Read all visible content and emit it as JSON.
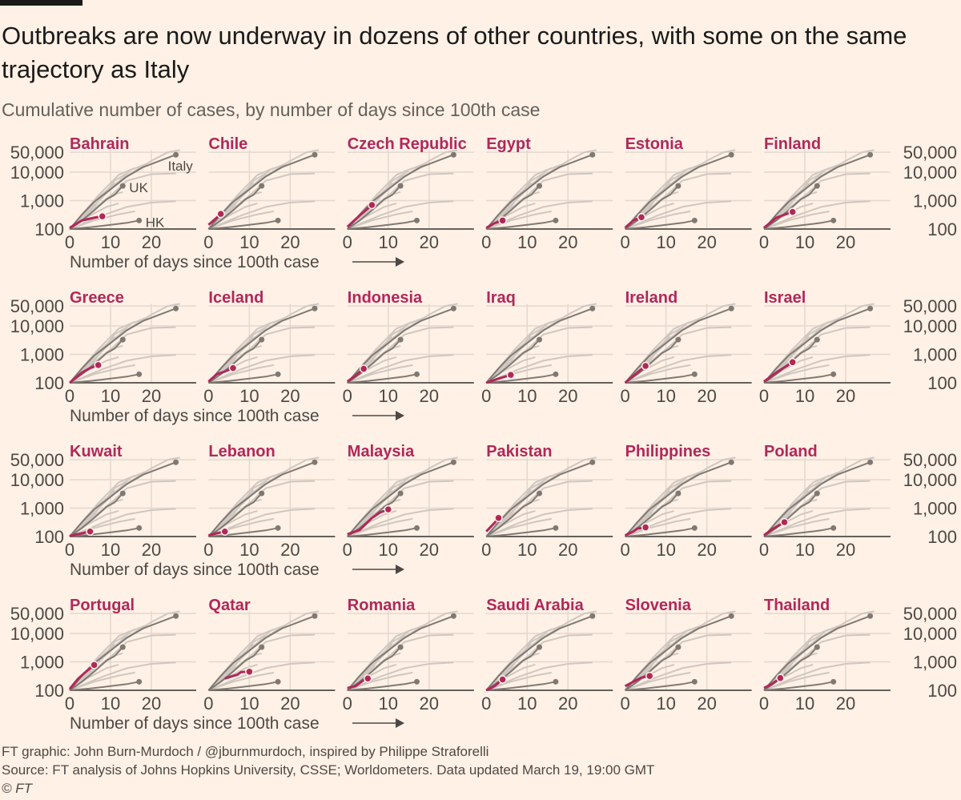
{
  "header": {
    "title": "Outbreaks are now underway in dozens of other countries, with some on the same trajectory as Italy",
    "subtitle": "Cumulative number of cases, by number of days since 100th case"
  },
  "footer": {
    "credit": "FT graphic: John Burn-Murdoch / @jburnmurdoch, inspired by Philippe Straforelli",
    "source": "Source: FT analysis of Johns Hopkins University, CSSE; Worldometers. Data updated March 19, 19:00 GMT",
    "copyright": "© FT"
  },
  "colors": {
    "background": "#fff1e5",
    "highlight": "#b0285a",
    "reference": "#807973",
    "others": "#cfc7c0",
    "grid": "#e3d8cf",
    "axis": "#66605c"
  },
  "chart_data": {
    "type": "line",
    "layout": "small-multiples",
    "xlabel": "Number of days since 100th case",
    "ylabel": "",
    "yscale": "log",
    "ylim": [
      100,
      60000
    ],
    "xlim": [
      0,
      30
    ],
    "x_ticks": [
      "0",
      "10",
      "20"
    ],
    "y_ticks": [
      {
        "value": 100,
        "label": "100"
      },
      {
        "value": 1000,
        "label": "1,000"
      },
      {
        "value": 10000,
        "label": "10,000"
      },
      {
        "value": 50000,
        "label": "50,000"
      }
    ],
    "reference_series": [
      {
        "name": "Italy",
        "label": "Italy",
        "points": [
          [
            0,
            100
          ],
          [
            3,
            320
          ],
          [
            6,
            900
          ],
          [
            10,
            2500
          ],
          [
            14,
            7000
          ],
          [
            18,
            15000
          ],
          [
            22,
            25000
          ],
          [
            26,
            41000
          ]
        ]
      },
      {
        "name": "UK",
        "label": "UK",
        "points": [
          [
            0,
            100
          ],
          [
            3,
            200
          ],
          [
            6,
            450
          ],
          [
            9,
            1100
          ],
          [
            11,
            1600
          ],
          [
            13,
            3300
          ]
        ]
      },
      {
        "name": "HK",
        "label": "HK",
        "points": [
          [
            0,
            100
          ],
          [
            5,
            115
          ],
          [
            10,
            140
          ],
          [
            14,
            165
          ],
          [
            17,
            200
          ]
        ]
      }
    ],
    "other_series": [
      [
        [
          0,
          100
        ],
        [
          5,
          700
        ],
        [
          10,
          3000
        ],
        [
          15,
          9000
        ],
        [
          20,
          25000
        ],
        [
          24,
          50000
        ],
        [
          27,
          60000
        ]
      ],
      [
        [
          0,
          100
        ],
        [
          5,
          500
        ],
        [
          10,
          2500
        ],
        [
          15,
          12000
        ],
        [
          19,
          20000
        ]
      ],
      [
        [
          0,
          100
        ],
        [
          7,
          1500
        ],
        [
          12,
          8000
        ],
        [
          16,
          14000
        ]
      ],
      [
        [
          0,
          100
        ],
        [
          6,
          600
        ],
        [
          11,
          5000
        ],
        [
          14,
          9000
        ]
      ],
      [
        [
          0,
          100
        ],
        [
          8,
          800
        ],
        [
          14,
          5000
        ],
        [
          20,
          8500
        ],
        [
          26,
          9000
        ]
      ],
      [
        [
          0,
          100
        ],
        [
          5,
          400
        ],
        [
          10,
          1500
        ],
        [
          13,
          2000
        ]
      ],
      [
        [
          0,
          100
        ],
        [
          8,
          300
        ],
        [
          14,
          600
        ],
        [
          20,
          850
        ],
        [
          26,
          950
        ]
      ],
      [
        [
          0,
          100
        ],
        [
          6,
          200
        ],
        [
          12,
          330
        ],
        [
          16,
          420
        ]
      ],
      [
        [
          0,
          100
        ],
        [
          4,
          250
        ],
        [
          9,
          600
        ],
        [
          12,
          800
        ]
      ],
      [
        [
          0,
          100
        ],
        [
          3,
          300
        ],
        [
          7,
          1200
        ],
        [
          11,
          4000
        ]
      ]
    ],
    "countries": [
      {
        "name": "Bahrain",
        "points": [
          [
            0,
            110
          ],
          [
            3,
            200
          ],
          [
            6,
            250
          ],
          [
            8,
            280
          ]
        ]
      },
      {
        "name": "Chile",
        "points": [
          [
            0,
            140
          ],
          [
            2,
            250
          ],
          [
            3,
            340
          ]
        ]
      },
      {
        "name": "Czech Republic",
        "points": [
          [
            0,
            120
          ],
          [
            3,
            300
          ],
          [
            6,
            700
          ]
        ]
      },
      {
        "name": "Egypt",
        "points": [
          [
            0,
            110
          ],
          [
            2,
            160
          ],
          [
            4,
            200
          ]
        ]
      },
      {
        "name": "Estonia",
        "points": [
          [
            0,
            110
          ],
          [
            2,
            200
          ],
          [
            4,
            260
          ]
        ]
      },
      {
        "name": "Finland",
        "points": [
          [
            0,
            110
          ],
          [
            3,
            250
          ],
          [
            5,
            320
          ],
          [
            7,
            400
          ]
        ]
      },
      {
        "name": "Greece",
        "points": [
          [
            0,
            100
          ],
          [
            3,
            230
          ],
          [
            5,
            330
          ],
          [
            7,
            420
          ]
        ]
      },
      {
        "name": "Iceland",
        "points": [
          [
            0,
            110
          ],
          [
            2,
            200
          ],
          [
            4,
            250
          ],
          [
            6,
            330
          ]
        ]
      },
      {
        "name": "Indonesia",
        "points": [
          [
            0,
            110
          ],
          [
            2,
            180
          ],
          [
            4,
            310
          ]
        ]
      },
      {
        "name": "Iraq",
        "points": [
          [
            0,
            100
          ],
          [
            3,
            140
          ],
          [
            6,
            190
          ]
        ]
      },
      {
        "name": "Ireland",
        "points": [
          [
            0,
            100
          ],
          [
            3,
            230
          ],
          [
            5,
            390
          ]
        ]
      },
      {
        "name": "Israel",
        "points": [
          [
            0,
            110
          ],
          [
            3,
            230
          ],
          [
            5,
            350
          ],
          [
            7,
            530
          ]
        ]
      },
      {
        "name": "Kuwait",
        "points": [
          [
            0,
            105
          ],
          [
            3,
            130
          ],
          [
            5,
            150
          ]
        ]
      },
      {
        "name": "Lebanon",
        "points": [
          [
            0,
            110
          ],
          [
            2,
            130
          ],
          [
            4,
            150
          ]
        ]
      },
      {
        "name": "Malaysia",
        "points": [
          [
            0,
            120
          ],
          [
            3,
            170
          ],
          [
            6,
            450
          ],
          [
            8,
            700
          ],
          [
            10,
            900
          ]
        ]
      },
      {
        "name": "Pakistan",
        "points": [
          [
            0,
            150
          ],
          [
            2,
            300
          ],
          [
            3,
            450
          ]
        ]
      },
      {
        "name": "Philippines",
        "points": [
          [
            0,
            110
          ],
          [
            2,
            150
          ],
          [
            3,
            190
          ],
          [
            5,
            210
          ]
        ]
      },
      {
        "name": "Poland",
        "points": [
          [
            0,
            110
          ],
          [
            2,
            180
          ],
          [
            5,
            320
          ]
        ]
      },
      {
        "name": "Portugal",
        "points": [
          [
            0,
            110
          ],
          [
            2,
            250
          ],
          [
            4,
            450
          ],
          [
            6,
            780
          ]
        ]
      },
      {
        "name": "Qatar",
        "points": [
          [
            4,
            260
          ],
          [
            6,
            320
          ],
          [
            7,
            350
          ],
          [
            8,
            440
          ],
          [
            10,
            450
          ]
        ]
      },
      {
        "name": "Romania",
        "points": [
          [
            0,
            120
          ],
          [
            2,
            140
          ],
          [
            4,
            230
          ],
          [
            5,
            260
          ]
        ]
      },
      {
        "name": "Saudi Arabia",
        "points": [
          [
            0,
            100
          ],
          [
            2,
            140
          ],
          [
            4,
            240
          ]
        ]
      },
      {
        "name": "Slovenia",
        "points": [
          [
            0,
            140
          ],
          [
            2,
            200
          ],
          [
            4,
            280
          ],
          [
            6,
            320
          ]
        ]
      },
      {
        "name": "Thailand",
        "points": [
          [
            0,
            120
          ],
          [
            2,
            170
          ],
          [
            4,
            270
          ]
        ]
      }
    ]
  }
}
